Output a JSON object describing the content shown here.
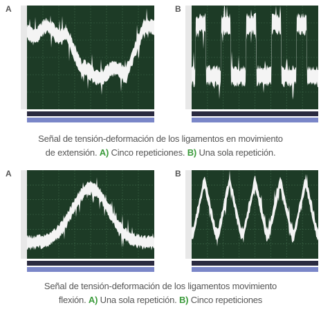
{
  "figure_1": {
    "panels": [
      {
        "label": "A"
      },
      {
        "label": "B"
      }
    ],
    "caption": {
      "text_1": "Señal de tensión-deformación de los ligamentos en movimiento",
      "text_2": "de extensión.",
      "label_a": "A)",
      "text_a": "Cinco repeticiones.",
      "label_b": "B)",
      "text_b": "Una sola repetición."
    }
  },
  "figure_2": {
    "panels": [
      {
        "label": "A"
      },
      {
        "label": "B"
      }
    ],
    "caption": {
      "text_1": "Señal de tensión-deformación de los ligamentos movimiento",
      "text_2": "flexión.",
      "label_a": "A)",
      "text_a": "Una sola repetición.",
      "label_b": "B)",
      "text_b": "Cinco repeticiones"
    }
  }
}
